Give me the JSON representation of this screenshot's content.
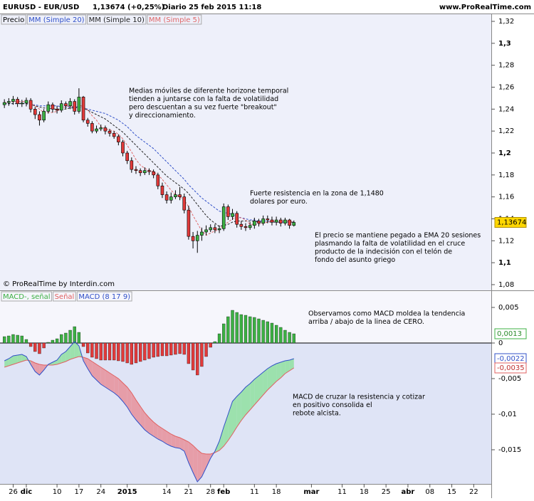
{
  "header": {
    "title": "EURUSD - EUR/USD",
    "quote": "1,13674 (+0,25%)",
    "period": "Diario",
    "date": "25 feb 2015 11:18",
    "site": "www.ProRealTime.com"
  },
  "chart_data": [
    {
      "type": "candlestick",
      "price_name": "Precio",
      "copyright": "© ProRealTime by Interdin.com",
      "up_color": "#3cb043",
      "down_color": "#e23a3a",
      "xlim": [
        -1,
        111
      ],
      "ylim": [
        1.0748,
        1.3265
      ],
      "yticks": [
        {
          "value": 1.32,
          "label": "1,32"
        },
        {
          "value": 1.3,
          "label": "1,3"
        },
        {
          "value": 1.28,
          "label": "1,28"
        },
        {
          "value": 1.26,
          "label": "1,26"
        },
        {
          "value": 1.24,
          "label": "1,24"
        },
        {
          "value": 1.22,
          "label": "1,22"
        },
        {
          "value": 1.2,
          "label": "1,2"
        },
        {
          "value": 1.18,
          "label": "1,18"
        },
        {
          "value": 1.16,
          "label": "1,16"
        },
        {
          "value": 1.14,
          "label": "1,14"
        },
        {
          "value": 1.12,
          "label": "1,12"
        },
        {
          "value": 1.1,
          "label": "1,1"
        },
        {
          "value": 1.08,
          "label": "1,08"
        }
      ],
      "open": [
        1.244,
        1.246,
        1.247,
        1.249,
        1.245,
        1.2455,
        1.248,
        1.24,
        1.235,
        1.23,
        1.238,
        1.244,
        1.24,
        1.239,
        1.245,
        1.243,
        1.247,
        1.238,
        1.251,
        1.23,
        1.227,
        1.22,
        1.222,
        1.223,
        1.22,
        1.218,
        1.215,
        1.21,
        1.2,
        1.193,
        1.185,
        1.184,
        1.182,
        1.184,
        1.183,
        1.18,
        1.17,
        1.162,
        1.157,
        1.16,
        1.162,
        1.16,
        1.148,
        1.124,
        1.12,
        1.125,
        1.128,
        1.13,
        1.132,
        1.13,
        1.131,
        1.151,
        1.142,
        1.145,
        1.135,
        1.133,
        1.132,
        1.134,
        1.138,
        1.136,
        1.14,
        1.139,
        1.137,
        1.139,
        1.136,
        1.139,
        1.134
      ],
      "high": [
        1.249,
        1.25,
        1.252,
        1.251,
        1.2485,
        1.2505,
        1.25,
        1.242,
        1.238,
        1.24,
        1.247,
        1.246,
        1.243,
        1.248,
        1.247,
        1.25,
        1.249,
        1.259,
        1.252,
        1.232,
        1.229,
        1.225,
        1.226,
        1.225,
        1.222,
        1.22,
        1.217,
        1.212,
        1.202,
        1.196,
        1.188,
        1.186,
        1.187,
        1.186,
        1.185,
        1.182,
        1.173,
        1.165,
        1.164,
        1.166,
        1.169,
        1.163,
        1.152,
        1.128,
        1.129,
        1.132,
        1.134,
        1.135,
        1.135,
        1.134,
        1.154,
        1.153,
        1.149,
        1.147,
        1.138,
        1.136,
        1.137,
        1.141,
        1.14,
        1.143,
        1.143,
        1.142,
        1.142,
        1.141,
        1.141,
        1.14,
        1.1385
      ],
      "low": [
        1.241,
        1.243,
        1.244,
        1.242,
        1.242,
        1.2425,
        1.237,
        1.231,
        1.225,
        1.228,
        1.236,
        1.237,
        1.236,
        1.237,
        1.24,
        1.24,
        1.235,
        1.236,
        1.228,
        1.224,
        1.218,
        1.218,
        1.22,
        1.217,
        1.215,
        1.213,
        1.207,
        1.197,
        1.19,
        1.182,
        1.181,
        1.179,
        1.18,
        1.18,
        1.177,
        1.167,
        1.159,
        1.154,
        1.154,
        1.158,
        1.157,
        1.145,
        1.121,
        1.113,
        1.109,
        1.12,
        1.125,
        1.128,
        1.127,
        1.127,
        1.129,
        1.139,
        1.139,
        1.132,
        1.13,
        1.129,
        1.13,
        1.131,
        1.133,
        1.134,
        1.136,
        1.134,
        1.134,
        1.133,
        1.134,
        1.131,
        1.133
      ],
      "close": [
        1.246,
        1.247,
        1.249,
        1.245,
        1.2455,
        1.248,
        1.24,
        1.235,
        1.23,
        1.238,
        1.244,
        1.24,
        1.239,
        1.245,
        1.243,
        1.247,
        1.238,
        1.251,
        1.23,
        1.227,
        1.22,
        1.222,
        1.223,
        1.22,
        1.218,
        1.215,
        1.21,
        1.2,
        1.193,
        1.185,
        1.184,
        1.182,
        1.184,
        1.183,
        1.18,
        1.17,
        1.162,
        1.157,
        1.16,
        1.162,
        1.16,
        1.148,
        1.124,
        1.12,
        1.125,
        1.128,
        1.13,
        1.132,
        1.13,
        1.131,
        1.151,
        1.142,
        1.145,
        1.135,
        1.133,
        1.132,
        1.134,
        1.138,
        1.136,
        1.14,
        1.139,
        1.137,
        1.139,
        1.136,
        1.139,
        1.134,
        1.13674
      ],
      "last_label": "1,13674",
      "series": [
        {
          "name": "MM (Simple 20)",
          "color": "#3050c8",
          "values": [
            1.245,
            1.245,
            1.245,
            1.245,
            1.245,
            1.245,
            1.244,
            1.244,
            1.243,
            1.243,
            1.243,
            1.243,
            1.243,
            1.242,
            1.242,
            1.242,
            1.242,
            1.242,
            1.241,
            1.24,
            1.239,
            1.238,
            1.237,
            1.236,
            1.234,
            1.232,
            1.23,
            1.227,
            1.224,
            1.22,
            1.216,
            1.213,
            1.21,
            1.207,
            1.204,
            1.2,
            1.196,
            1.192,
            1.188,
            1.184,
            1.18,
            1.176,
            1.171,
            1.167,
            1.163,
            1.159,
            1.156,
            1.153,
            1.15,
            1.147,
            1.146,
            1.145,
            1.144,
            1.142,
            1.141,
            1.14,
            1.139,
            1.139,
            1.138,
            1.138,
            1.138,
            1.137,
            1.137,
            1.137,
            1.137,
            1.137,
            1.137
          ]
        },
        {
          "name": "MM (Simple 10)",
          "color": "#222222",
          "values": [
            1.245,
            1.245,
            1.245,
            1.245,
            1.245,
            1.245,
            1.244,
            1.243,
            1.242,
            1.241,
            1.241,
            1.24,
            1.24,
            1.24,
            1.24,
            1.241,
            1.241,
            1.242,
            1.241,
            1.239,
            1.237,
            1.235,
            1.233,
            1.231,
            1.228,
            1.225,
            1.222,
            1.219,
            1.215,
            1.211,
            1.207,
            1.203,
            1.199,
            1.195,
            1.191,
            1.187,
            1.183,
            1.179,
            1.176,
            1.173,
            1.17,
            1.167,
            1.163,
            1.158,
            1.153,
            1.148,
            1.143,
            1.139,
            1.136,
            1.133,
            1.134,
            1.135,
            1.137,
            1.138,
            1.138,
            1.138,
            1.138,
            1.138,
            1.137,
            1.137,
            1.137,
            1.137,
            1.137,
            1.137,
            1.137,
            1.137,
            1.137
          ]
        },
        {
          "name": "MM (Simple 5)",
          "color": "#e06868",
          "values": [
            1.246,
            1.246,
            1.247,
            1.247,
            1.247,
            1.247,
            1.245,
            1.243,
            1.24,
            1.237,
            1.237,
            1.237,
            1.238,
            1.241,
            1.242,
            1.243,
            1.242,
            1.244,
            1.242,
            1.239,
            1.234,
            1.23,
            1.224,
            1.222,
            1.221,
            1.22,
            1.217,
            1.213,
            1.207,
            1.201,
            1.194,
            1.189,
            1.186,
            1.184,
            1.183,
            1.18,
            1.176,
            1.171,
            1.166,
            1.162,
            1.16,
            1.157,
            1.151,
            1.143,
            1.136,
            1.129,
            1.125,
            1.127,
            1.129,
            1.13,
            1.134,
            1.137,
            1.14,
            1.141,
            1.141,
            1.139,
            1.135,
            1.135,
            1.135,
            1.136,
            1.137,
            1.138,
            1.138,
            1.138,
            1.138,
            1.138,
            1.137
          ]
        }
      ],
      "annotations": [
        [
          "Medias móviles de diferente horizone temporal",
          "tienden a juntarse con la falta de volatilidad",
          "pero descuentan a su vez fuerte \"breakout\"",
          "y direccionamiento."
        ],
        [
          "Fuerte resistencia en la zona de 1,1480",
          "dolares por euro."
        ],
        [
          "El precio se mantiene pegado a EMA 20 sesiones",
          "plasmando la falta de volatilidad en el cruce",
          "producto de la indecisión con el telón de",
          "fondo del asunto griego"
        ]
      ]
    },
    {
      "type": "macd",
      "xlim": [
        -1,
        111
      ],
      "ylim": [
        -0.0198,
        0.0072
      ],
      "yticks": [
        {
          "value": 0.005,
          "label": "0,005"
        },
        0,
        {
          "value": -0.005,
          "label": "-0,005"
        },
        {
          "value": -0.01,
          "label": "-0,01"
        },
        {
          "value": -0.015,
          "label": "-0,015"
        }
      ],
      "xticks": [
        {
          "value": 2,
          "label": "26"
        },
        {
          "value": 5,
          "label": "dic"
        },
        {
          "value": 12,
          "label": "10"
        },
        {
          "value": 17,
          "label": "17"
        },
        {
          "value": 22,
          "label": "24"
        },
        {
          "value": 28,
          "label": "2015"
        },
        {
          "value": 37,
          "label": "14"
        },
        {
          "value": 42,
          "label": "21"
        },
        {
          "value": 47,
          "label": "28"
        },
        {
          "value": 50,
          "label": "feb"
        },
        {
          "value": 57,
          "label": "11"
        },
        {
          "value": 62,
          "label": "18"
        },
        {
          "value": 70,
          "label": "mar"
        },
        {
          "value": 77,
          "label": "11"
        },
        {
          "value": 82,
          "label": "18"
        },
        {
          "value": 87,
          "label": "25"
        },
        {
          "value": 92,
          "label": "abr"
        },
        {
          "value": 97,
          "label": "08"
        },
        {
          "value": 102,
          "label": "15"
        },
        {
          "value": 107,
          "label": "22"
        }
      ],
      "series": [
        {
          "name": "MACD-, señal",
          "color": "#3cb043",
          "negative_color": "#e23a3a",
          "last_label": "0,0013",
          "values": [
            0.0009,
            0.001,
            0.0012,
            0.0011,
            0.001,
            0.0005,
            -0.0005,
            -0.0012,
            -0.0015,
            -0.0007,
            0.0001,
            0.0004,
            0.0006,
            0.0012,
            0.0014,
            0.0018,
            0.0023,
            0.0015,
            -0.0005,
            -0.0014,
            -0.002,
            -0.0022,
            -0.0024,
            -0.0024,
            -0.0024,
            -0.0024,
            -0.0025,
            -0.0026,
            -0.0028,
            -0.003,
            -0.0028,
            -0.0026,
            -0.0024,
            -0.0022,
            -0.002,
            -0.0019,
            -0.0018,
            -0.0018,
            -0.0017,
            -0.0016,
            -0.0015,
            -0.0016,
            -0.0029,
            -0.0038,
            -0.0045,
            -0.0033,
            -0.0019,
            -0.0006,
            0.0002,
            0.0013,
            0.0027,
            0.0037,
            0.0046,
            0.0043,
            0.004,
            0.0039,
            0.0037,
            0.0036,
            0.0034,
            0.0032,
            0.003,
            0.0028,
            0.0025,
            0.0022,
            0.0018,
            0.0015,
            0.0013
          ]
        },
        {
          "name": "Señal",
          "color": "#e06060",
          "last_label": "-0,0035",
          "values": [
            -0.0034,
            -0.0032,
            -0.003,
            -0.0028,
            -0.0026,
            -0.0024,
            -0.0025,
            -0.0028,
            -0.003,
            -0.0031,
            -0.0031,
            -0.0031,
            -0.003,
            -0.0028,
            -0.0026,
            -0.0023,
            -0.0021,
            -0.0019,
            -0.002,
            -0.0022,
            -0.0026,
            -0.003,
            -0.0034,
            -0.0038,
            -0.0042,
            -0.0046,
            -0.005,
            -0.0056,
            -0.0062,
            -0.007,
            -0.008,
            -0.0089,
            -0.0098,
            -0.0105,
            -0.0111,
            -0.0116,
            -0.012,
            -0.0124,
            -0.0128,
            -0.0131,
            -0.0133,
            -0.0136,
            -0.0139,
            -0.0144,
            -0.015,
            -0.0155,
            -0.0156,
            -0.0156,
            -0.0154,
            -0.0151,
            -0.0145,
            -0.0137,
            -0.0128,
            -0.0118,
            -0.0109,
            -0.0101,
            -0.0094,
            -0.0087,
            -0.008,
            -0.0073,
            -0.0066,
            -0.006,
            -0.0054,
            -0.0049,
            -0.0043,
            -0.0039,
            -0.0035
          ]
        },
        {
          "name": "MACD (8 17 9)",
          "color": "#3050c8",
          "last_label": "-0,0022",
          "values": [
            -0.0025,
            -0.0022,
            -0.0018,
            -0.0017,
            -0.0016,
            -0.0019,
            -0.003,
            -0.004,
            -0.0045,
            -0.0038,
            -0.003,
            -0.0027,
            -0.0024,
            -0.0016,
            -0.0012,
            -0.0005,
            0.0002,
            -0.0004,
            -0.0025,
            -0.0036,
            -0.0046,
            -0.0052,
            -0.0058,
            -0.0062,
            -0.0066,
            -0.007,
            -0.0075,
            -0.0082,
            -0.009,
            -0.01,
            -0.0108,
            -0.0115,
            -0.0122,
            -0.0127,
            -0.0131,
            -0.0135,
            -0.0138,
            -0.0142,
            -0.0145,
            -0.0147,
            -0.0148,
            -0.0152,
            -0.0168,
            -0.0182,
            -0.0195,
            -0.0188,
            -0.0175,
            -0.0162,
            -0.0152,
            -0.0138,
            -0.0118,
            -0.01,
            -0.0082,
            -0.0075,
            -0.0069,
            -0.0062,
            -0.0057,
            -0.0051,
            -0.0046,
            -0.0041,
            -0.0036,
            -0.0032,
            -0.0029,
            -0.0027,
            -0.0025,
            -0.0024,
            -0.0022
          ]
        }
      ],
      "annotations": [
        [
          "Observamos como MACD moldea la tendencia",
          "arriba / abajo de la linea de CERO."
        ],
        [
          "MACD de cruzar la resistencia y cotizar",
          "en positivo consolida el",
          "rebote alcista."
        ]
      ]
    }
  ]
}
